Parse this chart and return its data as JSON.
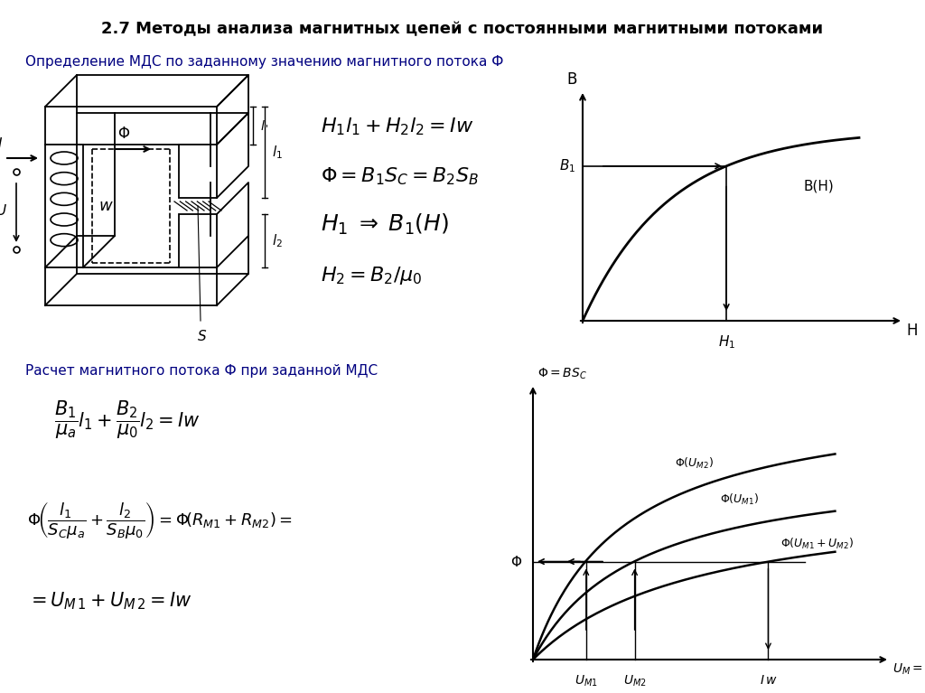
{
  "title": "2.7 Методы анализа магнитных цепей с постоянными магнитными потоками",
  "subtitle1": "Определение МДС по заданному значению магнитного потока Ф",
  "subtitle2": "Расчет магнитного потока Ф при заданной МДС",
  "bg_color": "#ffffff",
  "text_color": "#000000",
  "title_fontsize": 13,
  "subtitle_fontsize": 11,
  "formula_fontsize": 13
}
